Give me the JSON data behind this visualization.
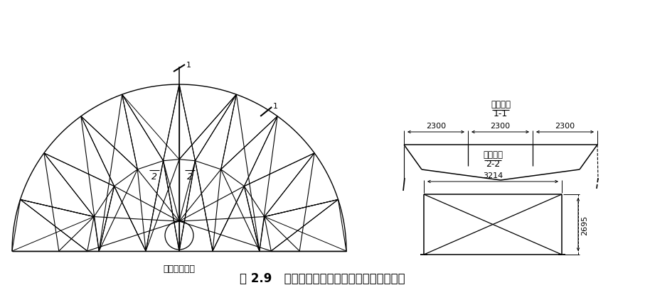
{
  "title": "图 2.9   柜顶桁架下弦水平支撑及垂直支撑布置",
  "subtitle_left": "下弦支撑布置",
  "label_11": "1-1",
  "label_11_text": "端部支撑",
  "label_22": "2-2",
  "label_22_text": "垂直支撑",
  "dim_2300": "2300",
  "dim_2695": "2695",
  "dim_3214": "3214",
  "bg_color": "#ffffff",
  "line_color": "#000000",
  "title_fontsize": 12,
  "label_fontsize": 8,
  "dim_fontsize": 8,
  "cut_label": "1",
  "cut_label2": "1",
  "inner_label": "2",
  "inner_label2": "2"
}
